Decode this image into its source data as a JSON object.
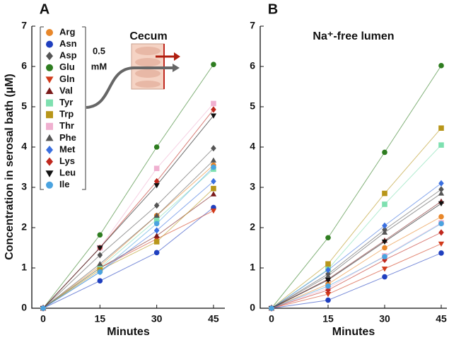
{
  "chart_data": [
    {
      "type": "line",
      "panel_label": "A",
      "title": "Cecum",
      "y_label": "Concentration in serosal bath (µM)",
      "x_label": "Minutes",
      "annotation_lines": [
        "0.5",
        "mM"
      ],
      "legend": true,
      "x": [
        0,
        15,
        30,
        45
      ],
      "xlim": [
        -3,
        48
      ],
      "xticks": [
        0,
        15,
        30,
        45
      ],
      "ylim": [
        0,
        7
      ],
      "yticks": [
        0,
        1,
        2,
        3,
        4,
        5,
        6,
        7
      ],
      "series": [
        {
          "name": "Arg",
          "color": "#e8872a",
          "marker": "circle",
          "values": [
            0,
            1.05,
            2.3,
            3.55
          ]
        },
        {
          "name": "Asn",
          "color": "#1f3fbf",
          "marker": "circle",
          "values": [
            0,
            0.68,
            1.38,
            2.5
          ]
        },
        {
          "name": "Asp",
          "color": "#555555",
          "marker": "diamond",
          "values": [
            0,
            1.32,
            2.55,
            3.97
          ]
        },
        {
          "name": "Glu",
          "color": "#2e7d20",
          "marker": "circle",
          "values": [
            0,
            1.82,
            4.0,
            6.05
          ]
        },
        {
          "name": "Gln",
          "color": "#d13a1a",
          "marker": "triangle-down",
          "values": [
            0,
            1.0,
            1.72,
            2.42
          ]
        },
        {
          "name": "Val",
          "color": "#7a1a1a",
          "marker": "triangle-up",
          "values": [
            0,
            1.0,
            1.8,
            2.83
          ]
        },
        {
          "name": "Tyr",
          "color": "#7ee0b0",
          "marker": "square",
          "values": [
            0,
            1.0,
            2.2,
            3.45
          ]
        },
        {
          "name": "Trp",
          "color": "#b8961a",
          "marker": "square",
          "values": [
            0,
            0.95,
            1.65,
            2.97
          ]
        },
        {
          "name": "Thr",
          "color": "#f0b0d0",
          "marker": "square",
          "values": [
            0,
            1.5,
            3.47,
            5.08
          ]
        },
        {
          "name": "Phe",
          "color": "#555555",
          "marker": "triangle-up",
          "values": [
            0,
            1.1,
            2.3,
            3.67
          ]
        },
        {
          "name": "Met",
          "color": "#3a6fe0",
          "marker": "diamond",
          "values": [
            0,
            0.9,
            1.93,
            3.15
          ]
        },
        {
          "name": "Lys",
          "color": "#c0281e",
          "marker": "diamond",
          "values": [
            0,
            1.5,
            3.15,
            4.93
          ]
        },
        {
          "name": "Leu",
          "color": "#111111",
          "marker": "triangle-down",
          "values": [
            0,
            1.5,
            3.05,
            4.78
          ]
        },
        {
          "name": "Ile",
          "color": "#4aa3e0",
          "marker": "circle",
          "values": [
            0,
            0.9,
            2.1,
            3.5
          ]
        }
      ]
    },
    {
      "type": "line",
      "panel_label": "B",
      "title": "Na⁺-free lumen",
      "x_label": "Minutes",
      "legend": false,
      "x": [
        0,
        15,
        30,
        45
      ],
      "xlim": [
        -3,
        46.5
      ],
      "xticks": [
        0,
        15,
        30,
        45
      ],
      "ylim": [
        0,
        7
      ],
      "yticks": [
        0,
        1,
        2,
        3,
        4,
        5,
        6,
        7
      ],
      "series": [
        {
          "color": "#e8872a",
          "marker": "circle",
          "values": [
            0,
            0.6,
            1.5,
            2.27
          ]
        },
        {
          "color": "#1f3fbf",
          "marker": "circle",
          "values": [
            0,
            0.2,
            0.78,
            1.37
          ]
        },
        {
          "color": "#555555",
          "marker": "diamond",
          "values": [
            0,
            0.85,
            1.95,
            2.95
          ]
        },
        {
          "color": "#2e7d20",
          "marker": "circle",
          "values": [
            0,
            1.75,
            3.87,
            6.02
          ]
        },
        {
          "color": "#d13a1a",
          "marker": "triangle-down",
          "values": [
            0,
            0.35,
            0.98,
            1.6
          ]
        },
        {
          "color": "#7a1a1a",
          "marker": "triangle-up",
          "values": [
            0,
            0.72,
            1.68,
            2.65
          ]
        },
        {
          "color": "#7ee0b0",
          "marker": "square",
          "values": [
            0,
            0.97,
            2.58,
            4.05
          ]
        },
        {
          "color": "#b8961a",
          "marker": "square",
          "values": [
            0,
            1.1,
            2.85,
            4.47
          ]
        },
        {
          "color": "#f0b0d0",
          "marker": "square",
          "values": [
            0,
            0.5,
            1.3,
            2.12
          ]
        },
        {
          "color": "#555555",
          "marker": "triangle-up",
          "values": [
            0,
            0.8,
            1.88,
            2.85
          ]
        },
        {
          "color": "#3a6fe0",
          "marker": "diamond",
          "values": [
            0,
            0.95,
            2.05,
            3.1
          ]
        },
        {
          "color": "#c0281e",
          "marker": "diamond",
          "values": [
            0,
            0.45,
            1.2,
            1.88
          ]
        },
        {
          "color": "#111111",
          "marker": "triangle-down",
          "values": [
            0,
            0.7,
            1.65,
            2.6
          ]
        },
        {
          "color": "#4aa3e0",
          "marker": "circle",
          "values": [
            0,
            0.55,
            1.28,
            2.1
          ]
        }
      ]
    }
  ]
}
